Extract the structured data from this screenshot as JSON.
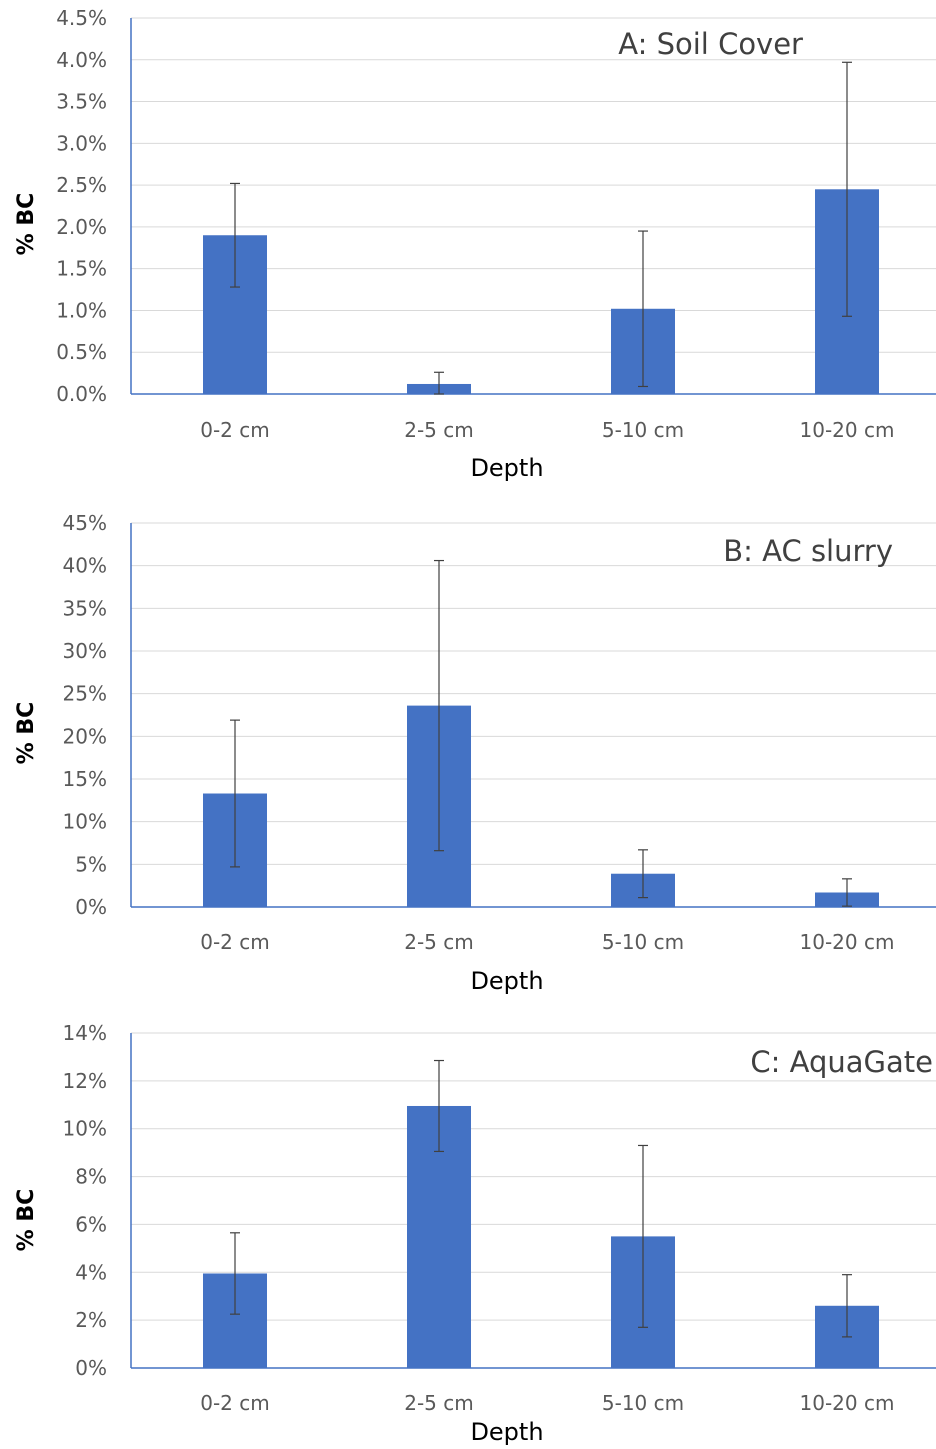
{
  "colors": {
    "bar": "#4472c4",
    "grid": "#d9d9d9",
    "axis": "#4472c4",
    "error_bar": "#404040"
  },
  "chart_data": [
    {
      "type": "bar",
      "title": "A: Soil Cover",
      "xlabel": "Depth",
      "ylabel": "% BC",
      "categories": [
        "0-2 cm",
        "2-5 cm",
        "5-10 cm",
        "10-20 cm"
      ],
      "values": [
        1.9,
        0.12,
        1.02,
        2.45
      ],
      "error": [
        0.62,
        0.14,
        0.93,
        1.52
      ],
      "ylim": [
        0,
        4.5
      ],
      "yticks": [
        "0.0%",
        "0.5%",
        "1.0%",
        "1.5%",
        "2.0%",
        "2.5%",
        "3.0%",
        "3.5%",
        "4.0%",
        "4.5%"
      ],
      "unit": "%",
      "grid": true
    },
    {
      "type": "bar",
      "title": "B: AC slurry",
      "xlabel": "Depth",
      "ylabel": "% BC",
      "categories": [
        "0-2 cm",
        "2-5 cm",
        "5-10 cm",
        "10-20 cm"
      ],
      "values": [
        13.3,
        23.6,
        3.9,
        1.7
      ],
      "error": [
        8.6,
        17.0,
        2.8,
        1.6
      ],
      "ylim": [
        0,
        45
      ],
      "yticks": [
        "0%",
        "5%",
        "10%",
        "15%",
        "20%",
        "25%",
        "30%",
        "35%",
        "40%",
        "45%"
      ],
      "unit": "%",
      "grid": true
    },
    {
      "type": "bar",
      "title": "C: AquaGate",
      "xlabel": "Depth",
      "ylabel": "% BC",
      "categories": [
        "0-2 cm",
        "2-5 cm",
        "5-10 cm",
        "10-20 cm"
      ],
      "values": [
        3.95,
        10.95,
        5.5,
        2.6
      ],
      "error": [
        1.7,
        1.9,
        3.8,
        1.3
      ],
      "ylim": [
        0,
        14
      ],
      "yticks": [
        "0%",
        "2%",
        "4%",
        "6%",
        "8%",
        "10%",
        "12%",
        "14%"
      ],
      "unit": "%",
      "grid": true
    }
  ]
}
